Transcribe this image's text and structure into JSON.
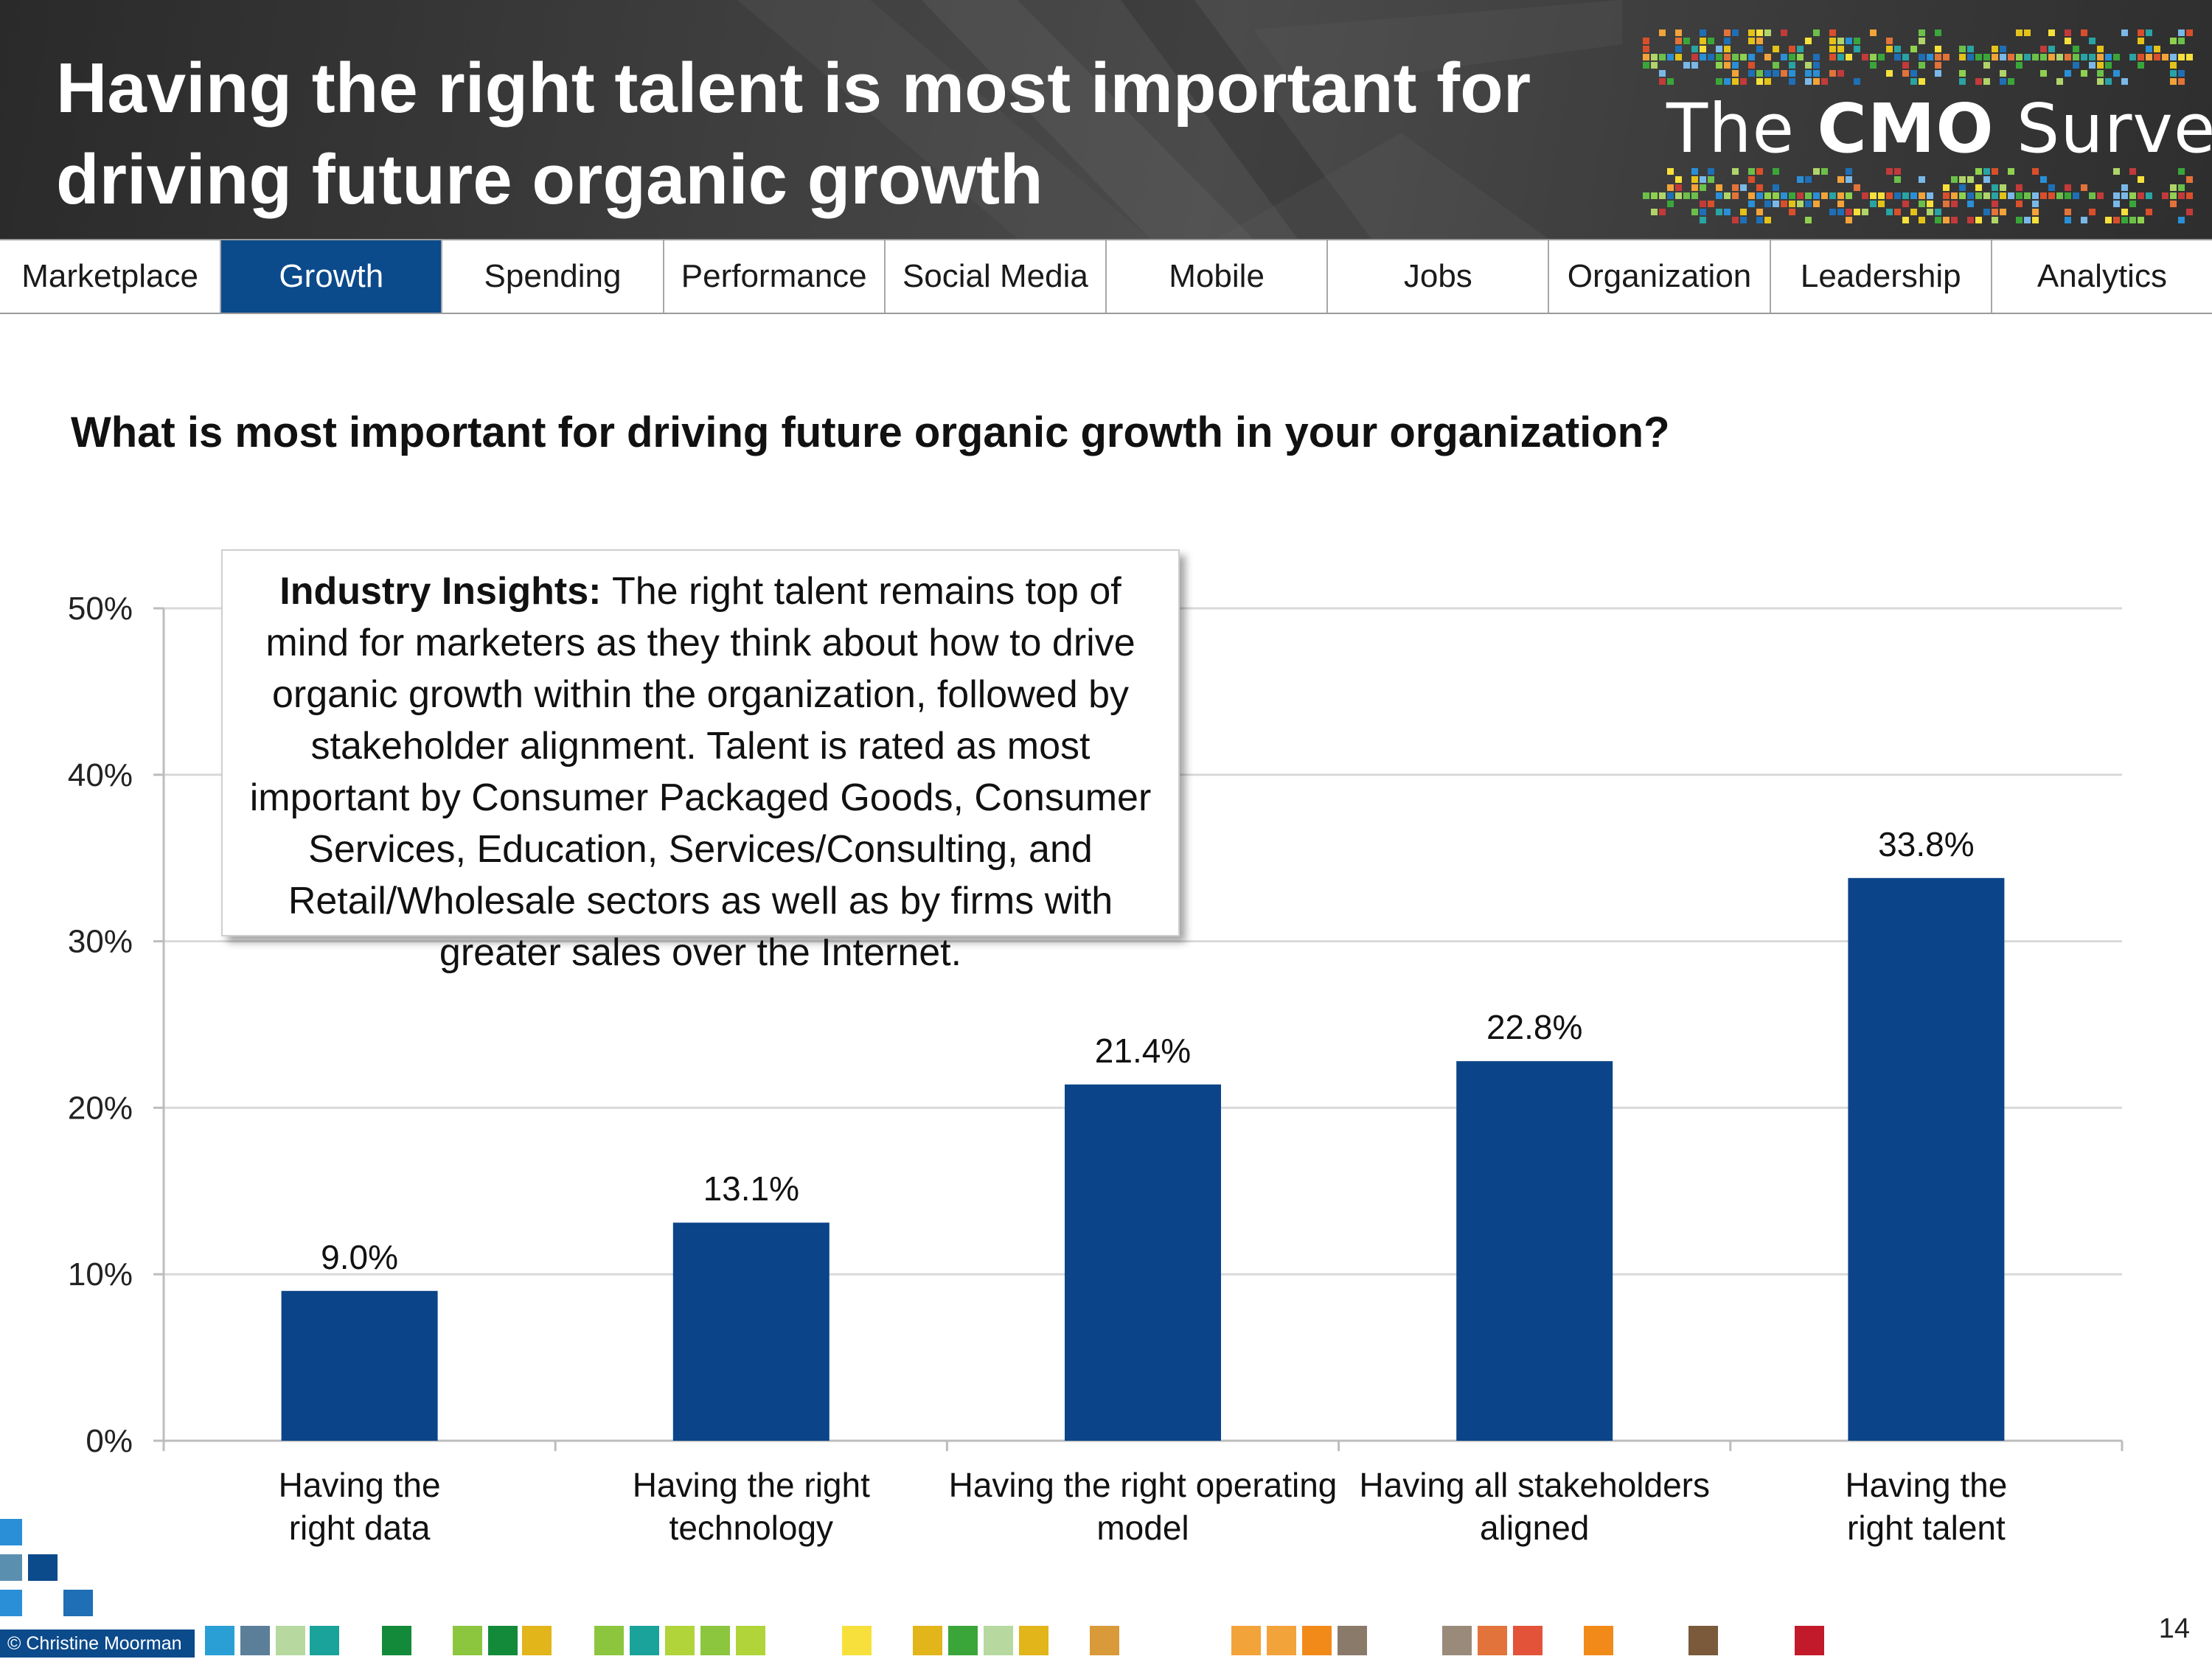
{
  "header": {
    "title": "Having the right talent is most important for driving future organic growth",
    "brand_the": "The",
    "brand_cmo": "CMO",
    "brand_survey": "Survey"
  },
  "nav": {
    "tabs": [
      {
        "label": "Marketplace",
        "active": false
      },
      {
        "label": "Growth",
        "active": true
      },
      {
        "label": "Spending",
        "active": false
      },
      {
        "label": "Performance",
        "active": false
      },
      {
        "label": "Social Media",
        "active": false
      },
      {
        "label": "Mobile",
        "active": false
      },
      {
        "label": "Jobs",
        "active": false
      },
      {
        "label": "Organization",
        "active": false
      },
      {
        "label": "Leadership",
        "active": false
      },
      {
        "label": "Analytics",
        "active": false
      }
    ]
  },
  "question": "What is most important for driving future organic growth in your organization?",
  "insight": {
    "label": "Industry Insights:",
    "text": "The right talent remains top of mind for marketers as they think about how to drive organic growth within the organization, followed by stakeholder alignment. Talent is rated as most important by Consumer Packaged Goods, Consumer Services, Education, Services/Consulting, and Retail/Wholesale sectors as well as by firms with greater sales over the Internet."
  },
  "chart_data": {
    "type": "bar",
    "categories": [
      [
        "Having the",
        "right data"
      ],
      [
        "Having the right",
        "technology"
      ],
      [
        "Having the right operating",
        "model"
      ],
      [
        "Having all stakeholders",
        "aligned"
      ],
      [
        "Having the",
        "right talent"
      ]
    ],
    "values": [
      9.0,
      13.1,
      21.4,
      22.8,
      33.8
    ],
    "data_labels": [
      "9.0%",
      "13.1%",
      "21.4%",
      "22.8%",
      "33.8%"
    ],
    "ylim": [
      0,
      50
    ],
    "yticks": [
      "0%",
      "10%",
      "20%",
      "30%",
      "40%",
      "50%"
    ],
    "ytick_values": [
      0,
      10,
      20,
      30,
      40,
      50
    ],
    "bar_color": "#0b4488",
    "grid": true
  },
  "footer": {
    "copyright": "© Christine Moorman",
    "page_number": "14"
  },
  "colors": {
    "accent": "#0b4a8b",
    "active_tab": "#0b4a8b"
  }
}
